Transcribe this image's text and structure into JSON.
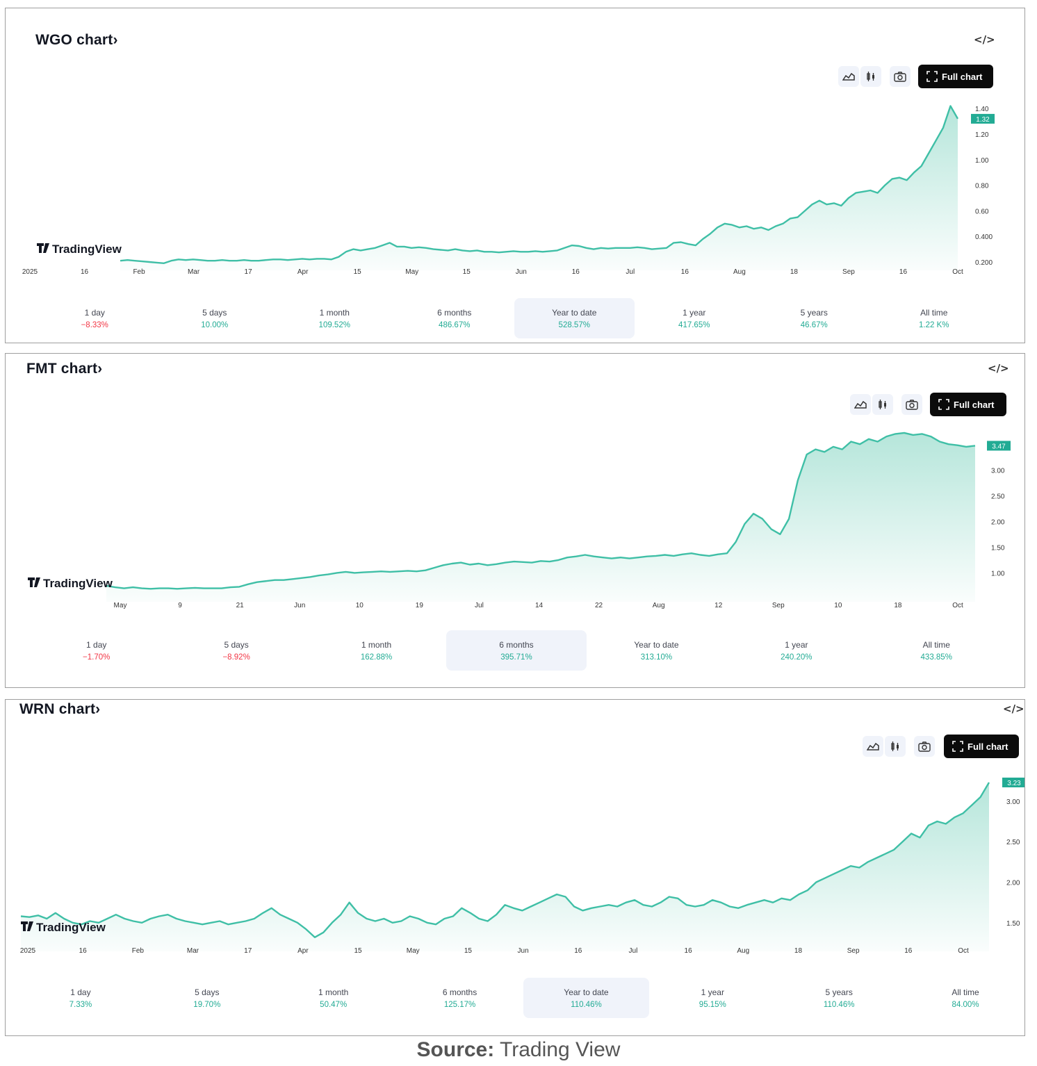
{
  "colors": {
    "line": "#3fbfa6",
    "fill": "#5cc7ae",
    "badge": "#22ab94",
    "positive": "#22ab94",
    "negative": "#f23645"
  },
  "embed_label": "</>",
  "full_chart_label": "Full chart",
  "logo_text": "TradingView",
  "source": {
    "bold": "Source:",
    "text": " Trading View"
  },
  "panels": [
    {
      "title": "WGO chart›",
      "selected": 4,
      "periods": [
        {
          "label": "1 day",
          "value": "−8.33%",
          "sign": "neg"
        },
        {
          "label": "5 days",
          "value": "10.00%",
          "sign": "pos"
        },
        {
          "label": "1 month",
          "value": "109.52%",
          "sign": "pos"
        },
        {
          "label": "6 months",
          "value": "486.67%",
          "sign": "pos"
        },
        {
          "label": "Year to date",
          "value": "528.57%",
          "sign": "pos"
        },
        {
          "label": "1 year",
          "value": "417.65%",
          "sign": "pos"
        },
        {
          "label": "5 years",
          "value": "46.67%",
          "sign": "pos"
        },
        {
          "label": "All time",
          "value": "1.22 K%",
          "sign": "pos"
        }
      ]
    },
    {
      "title": "FMT chart›",
      "selected": 3,
      "periods": [
        {
          "label": "1 day",
          "value": "−1.70%",
          "sign": "neg"
        },
        {
          "label": "5 days",
          "value": "−8.92%",
          "sign": "neg"
        },
        {
          "label": "1 month",
          "value": "162.88%",
          "sign": "pos"
        },
        {
          "label": "6 months",
          "value": "395.71%",
          "sign": "pos"
        },
        {
          "label": "Year to date",
          "value": "313.10%",
          "sign": "pos"
        },
        {
          "label": "1 year",
          "value": "240.20%",
          "sign": "pos"
        },
        {
          "label": "All time",
          "value": "433.85%",
          "sign": "pos"
        }
      ]
    },
    {
      "title": "WRN chart›",
      "selected": 4,
      "periods": [
        {
          "label": "1 day",
          "value": "7.33%",
          "sign": "pos"
        },
        {
          "label": "5 days",
          "value": "19.70%",
          "sign": "pos"
        },
        {
          "label": "1 month",
          "value": "50.47%",
          "sign": "pos"
        },
        {
          "label": "6 months",
          "value": "125.17%",
          "sign": "pos"
        },
        {
          "label": "Year to date",
          "value": "110.46%",
          "sign": "pos"
        },
        {
          "label": "1 year",
          "value": "95.15%",
          "sign": "pos"
        },
        {
          "label": "5 years",
          "value": "110.46%",
          "sign": "pos"
        },
        {
          "label": "All time",
          "value": "84.00%",
          "sign": "pos"
        }
      ]
    }
  ],
  "chart_data": [
    {
      "type": "area",
      "title": "WGO chart›",
      "ylim": [
        0.2,
        1.45
      ],
      "yticks": [
        "1.40",
        "1.20",
        "1.00",
        "0.80",
        "0.60",
        "0.400",
        "0.200"
      ],
      "ytick_values": [
        1.4,
        1.2,
        1.0,
        0.8,
        0.6,
        0.4,
        0.2
      ],
      "xticks": [
        "2025",
        "16",
        "Feb",
        "Mar",
        "17",
        "Apr",
        "15",
        "May",
        "15",
        "Jun",
        "16",
        "Jul",
        "16",
        "Aug",
        "18",
        "Sep",
        "16",
        "Oct"
      ],
      "last_value": "1.32",
      "values": [
        0.21,
        0.215,
        0.21,
        0.205,
        0.2,
        0.195,
        0.19,
        0.21,
        0.22,
        0.215,
        0.22,
        0.215,
        0.21,
        0.21,
        0.215,
        0.21,
        0.21,
        0.215,
        0.21,
        0.21,
        0.215,
        0.22,
        0.22,
        0.215,
        0.22,
        0.225,
        0.22,
        0.225,
        0.225,
        0.22,
        0.24,
        0.28,
        0.3,
        0.29,
        0.3,
        0.31,
        0.33,
        0.35,
        0.32,
        0.32,
        0.31,
        0.315,
        0.31,
        0.3,
        0.295,
        0.29,
        0.3,
        0.29,
        0.285,
        0.29,
        0.28,
        0.28,
        0.275,
        0.28,
        0.285,
        0.28,
        0.28,
        0.285,
        0.28,
        0.285,
        0.29,
        0.31,
        0.33,
        0.325,
        0.31,
        0.3,
        0.31,
        0.305,
        0.31,
        0.31,
        0.31,
        0.315,
        0.31,
        0.3,
        0.305,
        0.31,
        0.35,
        0.355,
        0.34,
        0.33,
        0.38,
        0.42,
        0.47,
        0.5,
        0.49,
        0.47,
        0.48,
        0.46,
        0.47,
        0.45,
        0.48,
        0.5,
        0.54,
        0.55,
        0.6,
        0.65,
        0.68,
        0.65,
        0.66,
        0.64,
        0.7,
        0.74,
        0.75,
        0.76,
        0.74,
        0.8,
        0.85,
        0.86,
        0.84,
        0.9,
        0.95,
        1.05,
        1.15,
        1.25,
        1.42,
        1.32
      ]
    },
    {
      "type": "area",
      "title": "FMT chart›",
      "ylim": [
        0.6,
        3.8
      ],
      "yticks": [
        "3.00",
        "2.50",
        "2.00",
        "1.50",
        "1.00"
      ],
      "ytick_values": [
        3.0,
        2.5,
        2.0,
        1.5,
        1.0
      ],
      "xticks": [
        "May",
        "9",
        "21",
        "Jun",
        "10",
        "19",
        "Jul",
        "14",
        "22",
        "Aug",
        "12",
        "Sep",
        "10",
        "18",
        "Oct"
      ],
      "last_value": "3.47",
      "values": [
        0.75,
        0.72,
        0.7,
        0.72,
        0.7,
        0.69,
        0.7,
        0.7,
        0.69,
        0.7,
        0.71,
        0.7,
        0.7,
        0.7,
        0.72,
        0.73,
        0.78,
        0.82,
        0.84,
        0.86,
        0.86,
        0.88,
        0.9,
        0.92,
        0.95,
        0.97,
        1.0,
        1.02,
        1.0,
        1.01,
        1.02,
        1.03,
        1.02,
        1.03,
        1.04,
        1.03,
        1.05,
        1.1,
        1.15,
        1.18,
        1.2,
        1.16,
        1.18,
        1.15,
        1.17,
        1.2,
        1.22,
        1.21,
        1.2,
        1.23,
        1.22,
        1.25,
        1.3,
        1.32,
        1.35,
        1.32,
        1.3,
        1.28,
        1.3,
        1.28,
        1.3,
        1.32,
        1.33,
        1.35,
        1.33,
        1.36,
        1.38,
        1.35,
        1.33,
        1.36,
        1.38,
        1.6,
        1.95,
        2.15,
        2.05,
        1.85,
        1.75,
        2.05,
        2.8,
        3.3,
        3.4,
        3.35,
        3.45,
        3.4,
        3.55,
        3.5,
        3.6,
        3.55,
        3.65,
        3.7,
        3.72,
        3.68,
        3.7,
        3.65,
        3.55,
        3.5,
        3.48,
        3.45,
        3.47
      ]
    },
    {
      "type": "area",
      "title": "WRN chart›",
      "ylim": [
        1.25,
        3.35
      ],
      "yticks": [
        "3.00",
        "2.50",
        "2.00",
        "1.50"
      ],
      "ytick_values": [
        3.0,
        2.5,
        2.0,
        1.5
      ],
      "xticks": [
        "2025",
        "16",
        "Feb",
        "Mar",
        "17",
        "Apr",
        "15",
        "May",
        "15",
        "Jun",
        "16",
        "Jul",
        "16",
        "Aug",
        "18",
        "Sep",
        "16",
        "Oct"
      ],
      "last_value": "3.23",
      "values": [
        1.58,
        1.57,
        1.59,
        1.55,
        1.62,
        1.55,
        1.5,
        1.48,
        1.52,
        1.5,
        1.55,
        1.6,
        1.55,
        1.52,
        1.5,
        1.55,
        1.58,
        1.6,
        1.55,
        1.52,
        1.5,
        1.48,
        1.5,
        1.52,
        1.48,
        1.5,
        1.52,
        1.55,
        1.62,
        1.68,
        1.6,
        1.55,
        1.5,
        1.42,
        1.32,
        1.38,
        1.5,
        1.6,
        1.75,
        1.62,
        1.55,
        1.52,
        1.55,
        1.5,
        1.52,
        1.58,
        1.55,
        1.5,
        1.48,
        1.55,
        1.58,
        1.68,
        1.62,
        1.55,
        1.52,
        1.6,
        1.72,
        1.68,
        1.65,
        1.7,
        1.75,
        1.8,
        1.85,
        1.82,
        1.7,
        1.65,
        1.68,
        1.7,
        1.72,
        1.7,
        1.75,
        1.78,
        1.72,
        1.7,
        1.75,
        1.82,
        1.8,
        1.72,
        1.7,
        1.72,
        1.78,
        1.75,
        1.7,
        1.68,
        1.72,
        1.75,
        1.78,
        1.75,
        1.8,
        1.78,
        1.85,
        1.9,
        2.0,
        2.05,
        2.1,
        2.15,
        2.2,
        2.18,
        2.25,
        2.3,
        2.35,
        2.4,
        2.5,
        2.6,
        2.55,
        2.7,
        2.75,
        2.72,
        2.8,
        2.85,
        2.95,
        3.05,
        3.23
      ]
    }
  ]
}
